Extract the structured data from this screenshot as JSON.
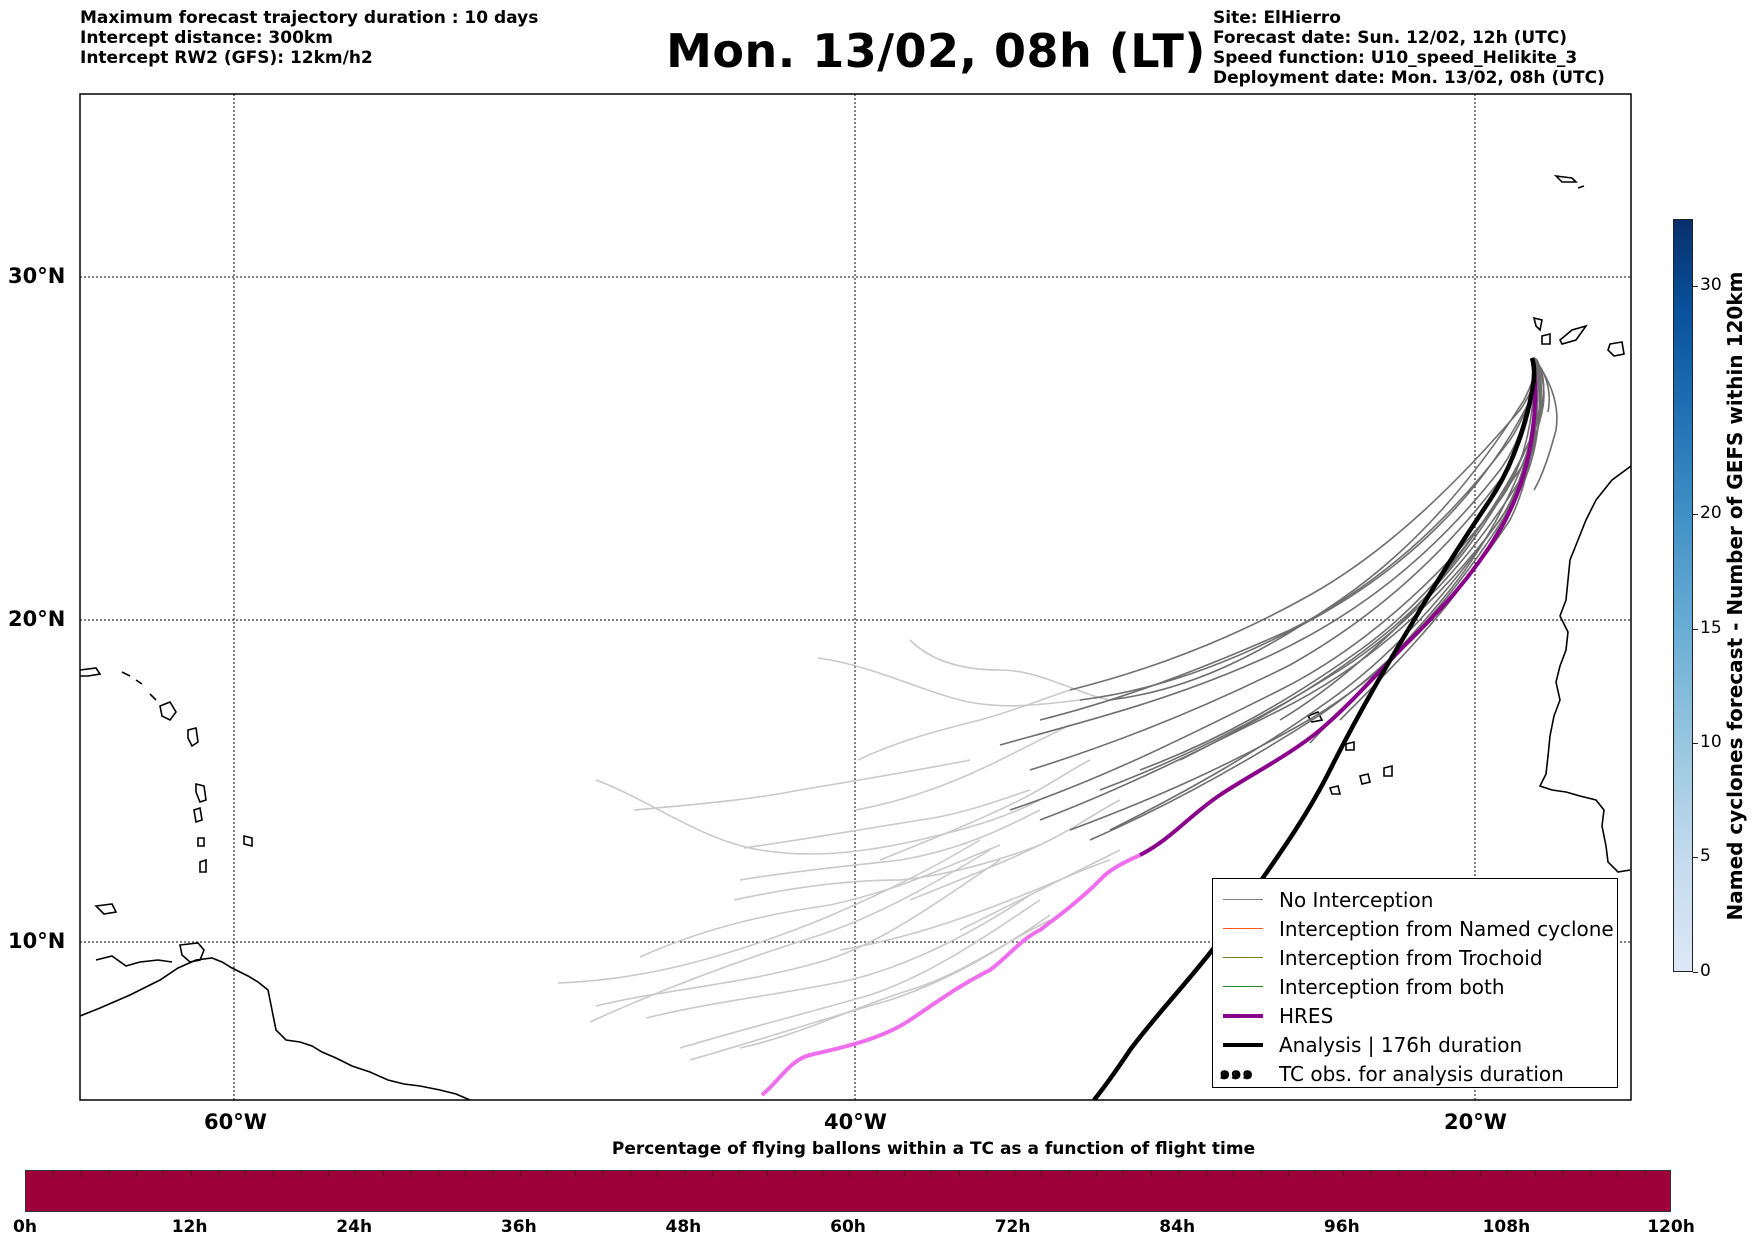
{
  "header": {
    "left_lines": [
      "Maximum forecast trajectory duration : 10 days",
      "Intercept distance: 300km",
      "Intercept RW2 (GFS):  12km/h2"
    ],
    "title": "Mon. 13/02, 08h (LT)",
    "right_lines": [
      "Site: ElHierro",
      "Forecast date: Sun. 12/02, 12h (UTC)",
      "Speed function: U10_speed_Helikite_3",
      "Deployment date: Mon. 13/02, 08h (UTC)"
    ]
  },
  "map": {
    "lat_labels": [
      "30°N",
      "20°N",
      "10°N"
    ],
    "lon_labels": [
      "60°W",
      "40°W",
      "20°W"
    ],
    "colors": {
      "ensemble": "#6e6e6e",
      "ensemble_faded": "#c9c9c9",
      "hres": "#8b008b",
      "hres_faded": "#ee6eee",
      "analysis": "#000000",
      "coast": "#000000"
    }
  },
  "legend": {
    "items": [
      {
        "label": "No Interception",
        "color": "#808080",
        "style": "line-thin"
      },
      {
        "label": "Interception from Named cyclone",
        "color": "#ff5a1e",
        "style": "line-thin"
      },
      {
        "label": "Interception from Trochoid",
        "color": "#7b7b1b",
        "style": "line-thin"
      },
      {
        "label": "Interception from both",
        "color": "#2a8a2a",
        "style": "line-thin"
      },
      {
        "label": "HRES",
        "color": "#8b008b",
        "style": "line-thick"
      },
      {
        "label": "Analysis | 176h duration",
        "color": "#000000",
        "style": "line-thick"
      },
      {
        "label": "TC obs. for analysis duration",
        "color": "#000000",
        "style": "cyclone-symbols",
        "symbol": "๑๑๑"
      }
    ]
  },
  "colorbar_right": {
    "title": "Named cyclones forecast - Number of GEFS within 120km",
    "ticks": [
      "0",
      "5",
      "10",
      "15",
      "20",
      "30"
    ],
    "range": [
      0,
      33
    ]
  },
  "colorbar_bottom": {
    "title": "Percentage of flying ballons within a TC as a function of flight time",
    "ticks": [
      "0h",
      "12h",
      "24h",
      "36h",
      "48h",
      "60h",
      "72h",
      "84h",
      "96h",
      "108h",
      "120h"
    ],
    "color": "#9e003a"
  }
}
